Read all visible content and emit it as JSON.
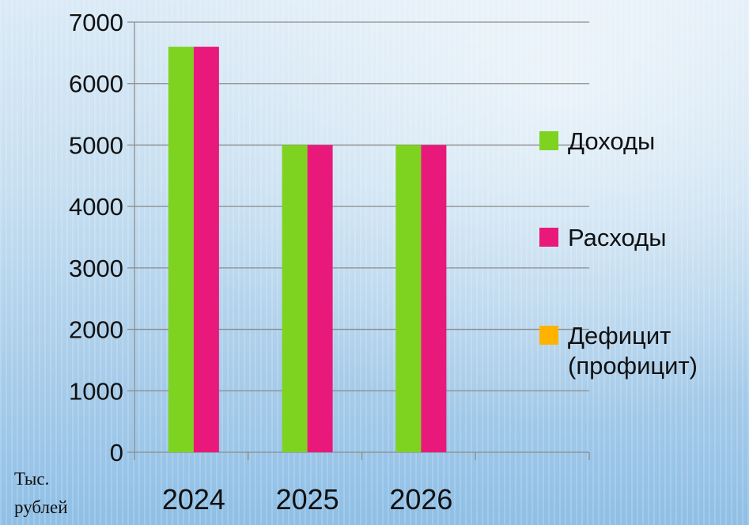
{
  "chart_data": {
    "type": "bar",
    "categories": [
      "2024",
      "2025",
      "2026"
    ],
    "series": [
      {
        "name": "Доходы",
        "values": [
          6600,
          5000,
          5000
        ],
        "color": "#7ed321"
      },
      {
        "name": "Расходы",
        "values": [
          6600,
          5000,
          5000
        ],
        "color": "#e8197a"
      },
      {
        "name": "Дефицит (профицит)",
        "values": [
          0,
          0,
          0
        ],
        "color": "#ffb300"
      }
    ],
    "ylim": [
      0,
      7000
    ],
    "yticks": [
      "0",
      "1000",
      "2000",
      "3000",
      "4000",
      "5000",
      "6000",
      "7000"
    ],
    "unit_label": "Тыс. рублей",
    "grid": true,
    "legend": "right"
  },
  "legend": {
    "items": [
      {
        "label": "Доходы",
        "color": "#7ed321"
      },
      {
        "label": "Расходы",
        "color": "#e8197a"
      },
      {
        "label": "Дефицит\n(профицит)",
        "color": "#ffb300"
      }
    ]
  }
}
